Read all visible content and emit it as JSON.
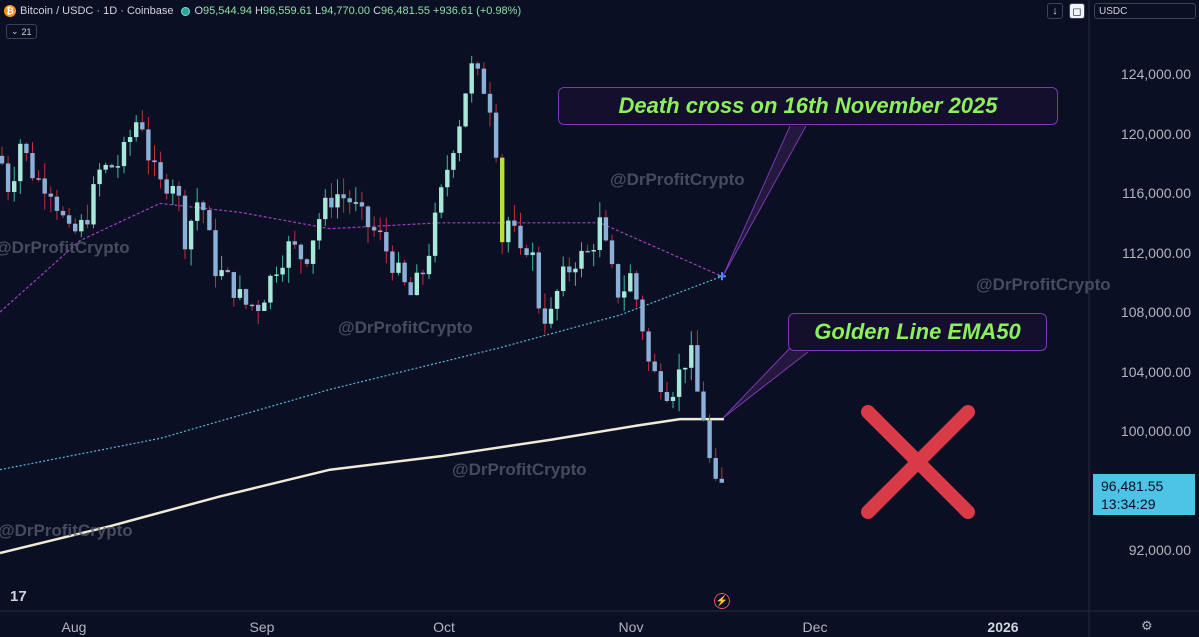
{
  "legend": {
    "title": "Bitcoin / USDC · 1D · Coinbase",
    "ohlc": [
      {
        "k": "O",
        "v": "95,544.94"
      },
      {
        "k": "H",
        "v": "96,559.61"
      },
      {
        "k": "L",
        "v": "94,770.00"
      },
      {
        "k": "C",
        "v": "96,481.55"
      }
    ],
    "change": "+936.61 (+0.98%)",
    "collapse_count": "21",
    "up_color": "#26a69a"
  },
  "toolbar": {
    "currency": "USDC",
    "download_icon": "arrow-down-icon",
    "screenshot_icon": "camera-icon"
  },
  "price_axis": [
    "124,000.00",
    "120,000.00",
    "116,000.00",
    "112,000.00",
    "108,000.00",
    "104,000.00",
    "100,000.00",
    "92,000.00"
  ],
  "current_price": {
    "price": "96,481.55",
    "countdown": "13:34:29"
  },
  "time_axis": [
    "Aug",
    "Sep",
    "Oct",
    "Nov",
    "Dec",
    "2026"
  ],
  "watermark": "@DrProfitCrypto",
  "annotations": {
    "death_cross": "Death cross on 16th November 2025",
    "golden_line": "Golden Line EMA50"
  },
  "colors": {
    "background": "#0a0f23",
    "up_candle": "#a8e8d8",
    "down_candle": "#8ab0d8",
    "volume_spike": "#b8e03a",
    "ema_white": "#f0ead6",
    "ma_purple": "#a040c0",
    "ma_cyan": "#5ab8d8",
    "red_x": "#d83a48",
    "annotation_text": "#8cf05a",
    "annotation_border": "#7a3ab0"
  },
  "chart_data": {
    "type": "candlestick",
    "title": "Bitcoin / USDC · 1D · Coinbase",
    "xlabel": "",
    "ylabel": "",
    "ylim": [
      90000,
      126000
    ],
    "x_ticks": [
      "Aug",
      "Sep",
      "Oct",
      "Nov",
      "Dec",
      "2026"
    ],
    "y_ticks": [
      92000,
      100000,
      104000,
      108000,
      112000,
      116000,
      120000,
      124000
    ],
    "last_close": 96481.55,
    "overlays": [
      {
        "line": "EMA50 (white)",
        "values": [
          91800,
          93600,
          95600,
          97400,
          98300,
          99400,
          100400,
          100800,
          100800
        ]
      },
      {
        "line": "purple dashed",
        "values": [
          108000,
          112800,
          115300,
          114700,
          113600,
          114000,
          114000,
          110400
        ]
      },
      {
        "line": "cyan dashed",
        "values": [
          97400,
          99500,
          102800,
          105600,
          107800,
          110400
        ]
      }
    ]
  }
}
